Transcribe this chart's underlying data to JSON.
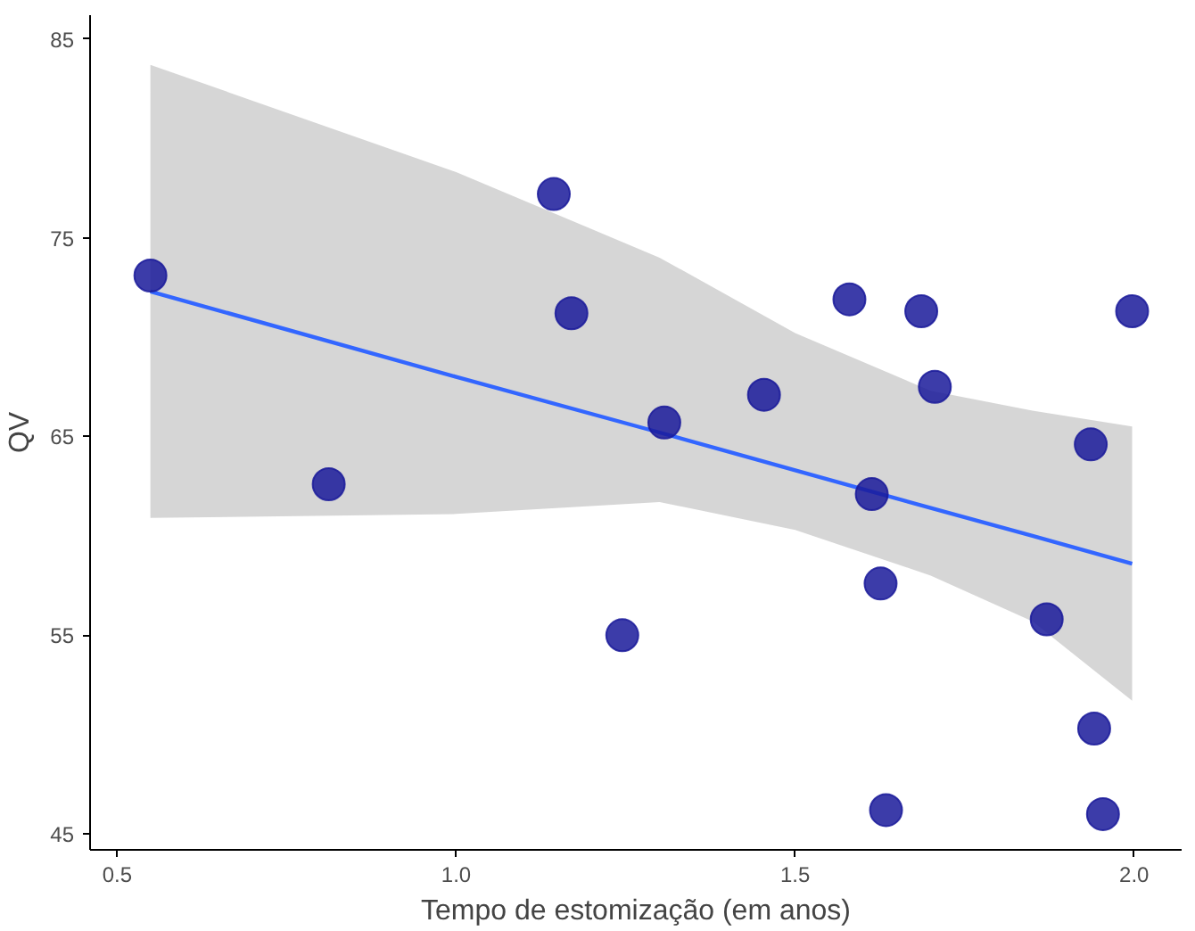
{
  "chart_data": {
    "type": "scatter",
    "xlabel": "Tempo de estomização (em anos)",
    "ylabel": "QV",
    "xlim": [
      0.46,
      2.07
    ],
    "ylim": [
      44.2,
      86.2
    ],
    "xticks": [
      0.5,
      {
        "value": 1,
        "label": "1.0"
      },
      1.5,
      {
        "value": 2,
        "label": "2.0"
      }
    ],
    "yticks": [
      45,
      55,
      65,
      75,
      85
    ],
    "grid": false,
    "series": [
      {
        "marker": "circle",
        "color": "#1a1a9a",
        "x": [
          0.549,
          0.812,
          1.144,
          1.17,
          1.245,
          1.307,
          1.454,
          1.58,
          1.613,
          1.626,
          1.634,
          1.686,
          1.706,
          1.871,
          1.936,
          1.941,
          1.954,
          1.997
        ],
        "values": [
          73.1,
          62.6,
          77.2,
          71.2,
          55.0,
          65.7,
          67.1,
          71.9,
          62.1,
          57.6,
          46.2,
          71.3,
          67.5,
          55.8,
          64.6,
          50.3,
          46.0,
          71.3
        ]
      },
      {
        "type": "line",
        "color": "#3366ff",
        "line_style": "solid",
        "x": [
          0.549,
          1.0,
          1.3,
          1.5,
          1.7,
          1.85,
          1.997
        ],
        "values": [
          72.3,
          68.0,
          65.2,
          63.3,
          61.4,
          60.0,
          58.6
        ],
        "lower": [
          60.9,
          61.1,
          61.7,
          60.3,
          58.0,
          55.7,
          51.7
        ],
        "upper": [
          83.7,
          78.3,
          74.0,
          70.2,
          67.3,
          66.3,
          65.5
        ]
      }
    ]
  }
}
